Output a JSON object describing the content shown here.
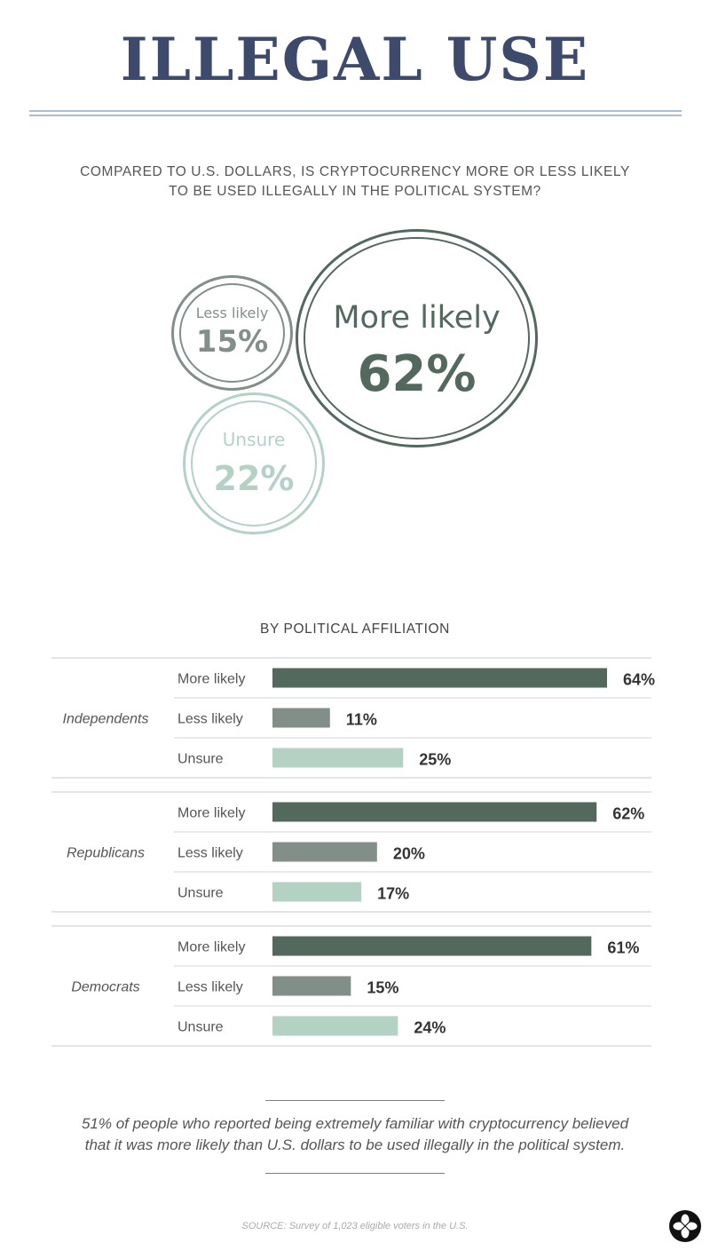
{
  "title": "ILLEGAL USE",
  "question": {
    "line1": "COMPARED TO U.S. DOLLARS, IS CRYPTOCURRENCY MORE OR LESS LIKELY",
    "line2": "TO BE USED ILLEGALLY IN THE POLITICAL SYSTEM?"
  },
  "colors": {
    "title": "#3d4a6b",
    "more_likely": "#53695e",
    "less_likely": "#828e88",
    "unsure": "#b3d2c4",
    "rule": "#aebccf"
  },
  "overall": [
    {
      "label": "Less likely",
      "value": "15%"
    },
    {
      "label": "More likely",
      "value": "62%"
    },
    {
      "label": "Unsure",
      "value": "22%"
    }
  ],
  "section_title": "BY POLITICAL AFFILIATION",
  "chart_data": {
    "type": "bar",
    "orientation": "horizontal",
    "title": "BY POLITICAL AFFILIATION",
    "categories": [
      "More likely",
      "Less likely",
      "Unsure"
    ],
    "groups": [
      {
        "name": "Independents",
        "values": [
          64,
          11,
          25
        ],
        "labels": [
          "64%",
          "11%",
          "25%"
        ]
      },
      {
        "name": "Republicans",
        "values": [
          62,
          20,
          17
        ],
        "labels": [
          "62%",
          "20%",
          "17%"
        ]
      },
      {
        "name": "Democrats",
        "values": [
          61,
          15,
          24
        ],
        "labels": [
          "61%",
          "15%",
          "24%"
        ]
      }
    ],
    "unit": "%",
    "xlim": [
      0,
      64
    ]
  },
  "footnote": {
    "line1": "51% of people who reported being extremely familiar with cryptocurrency believed",
    "line2": "that it was more likely than U.S. dollars to be used illegally in the political system."
  },
  "source": "SOURCE: Survey of 1,023 eligible voters in the U.S.",
  "icons": {
    "logo": "four-petal-logo-icon"
  }
}
